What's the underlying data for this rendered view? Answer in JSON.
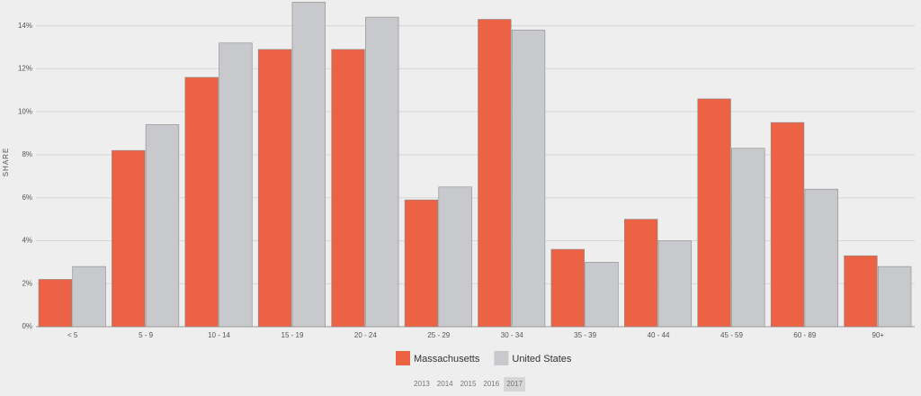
{
  "chart_data": {
    "type": "bar",
    "y_label": "SHARE",
    "categories": [
      "< 5",
      "5 - 9",
      "10 - 14",
      "15 - 19",
      "20 - 24",
      "25 - 29",
      "30 - 34",
      "35 - 39",
      "40 - 44",
      "45 - 59",
      "60 - 89",
      "90+"
    ],
    "series": [
      {
        "name": "Massachusetts",
        "color": "#ec6245",
        "values": [
          2.2,
          8.2,
          11.6,
          12.9,
          12.9,
          5.9,
          14.3,
          3.6,
          5.0,
          10.6,
          9.5,
          3.3
        ]
      },
      {
        "name": "United States",
        "color": "#c8c9cc",
        "values": [
          2.8,
          9.4,
          13.2,
          15.1,
          14.4,
          6.5,
          13.8,
          3.0,
          4.0,
          8.3,
          6.4,
          2.8
        ]
      }
    ],
    "ylim": [
      0,
      15.2
    ],
    "yticks": [
      {
        "value": 0,
        "label": "0%"
      },
      {
        "value": 2,
        "label": "2%"
      },
      {
        "value": 4,
        "label": "4%"
      },
      {
        "value": 6,
        "label": "6%"
      },
      {
        "value": 8,
        "label": "8%"
      },
      {
        "value": 10,
        "label": "10%"
      },
      {
        "value": 12,
        "label": "12%"
      },
      {
        "value": 14,
        "label": "14%"
      }
    ],
    "grid": true,
    "years": [
      "2013",
      "2014",
      "2015",
      "2016",
      "2017"
    ]
  }
}
